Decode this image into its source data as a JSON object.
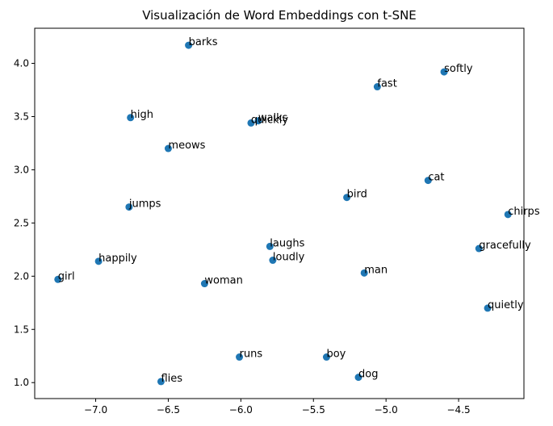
{
  "chart_data": {
    "type": "scatter",
    "title": "Visualización de Word Embeddings con t-SNE",
    "xlabel": "",
    "ylabel": "",
    "xlim": [
      -7.42,
      -4.05
    ],
    "ylim": [
      0.85,
      4.33
    ],
    "xticks": [
      -7.0,
      -6.5,
      -6.0,
      -5.5,
      -5.0,
      -4.5
    ],
    "xtick_labels": [
      "−7.0",
      "−6.5",
      "−6.0",
      "−5.5",
      "−5.0",
      "−4.5"
    ],
    "yticks": [
      1.0,
      1.5,
      2.0,
      2.5,
      3.0,
      3.5,
      4.0
    ],
    "ytick_labels": [
      "1.0",
      "1.5",
      "2.0",
      "2.5",
      "3.0",
      "3.5",
      "4.0"
    ],
    "grid": false,
    "marker_color": "#1f77b4",
    "points": [
      {
        "label": "barks",
        "x": -6.36,
        "y": 4.17
      },
      {
        "label": "softly",
        "x": -4.6,
        "y": 3.92
      },
      {
        "label": "fast",
        "x": -5.06,
        "y": 3.78
      },
      {
        "label": "high",
        "x": -6.76,
        "y": 3.49
      },
      {
        "label": "walks",
        "x": -5.88,
        "y": 3.46
      },
      {
        "label": "quickly",
        "x": -5.93,
        "y": 3.44
      },
      {
        "label": "meows",
        "x": -6.5,
        "y": 3.2
      },
      {
        "label": "cat",
        "x": -4.71,
        "y": 2.9
      },
      {
        "label": "bird",
        "x": -5.27,
        "y": 2.74
      },
      {
        "label": "jumps",
        "x": -6.77,
        "y": 2.65
      },
      {
        "label": "chirps",
        "x": -4.16,
        "y": 2.58
      },
      {
        "label": "laughs",
        "x": -5.8,
        "y": 2.28
      },
      {
        "label": "gracefully",
        "x": -4.36,
        "y": 2.26
      },
      {
        "label": "loudly",
        "x": -5.78,
        "y": 2.15
      },
      {
        "label": "happily",
        "x": -6.98,
        "y": 2.14
      },
      {
        "label": "man",
        "x": -5.15,
        "y": 2.03
      },
      {
        "label": "girl",
        "x": -7.26,
        "y": 1.97
      },
      {
        "label": "woman",
        "x": -6.25,
        "y": 1.93
      },
      {
        "label": "quietly",
        "x": -4.3,
        "y": 1.7
      },
      {
        "label": "runs",
        "x": -6.01,
        "y": 1.24
      },
      {
        "label": "boy",
        "x": -5.41,
        "y": 1.24
      },
      {
        "label": "dog",
        "x": -5.19,
        "y": 1.05
      },
      {
        "label": "flies",
        "x": -6.55,
        "y": 1.01
      }
    ]
  }
}
